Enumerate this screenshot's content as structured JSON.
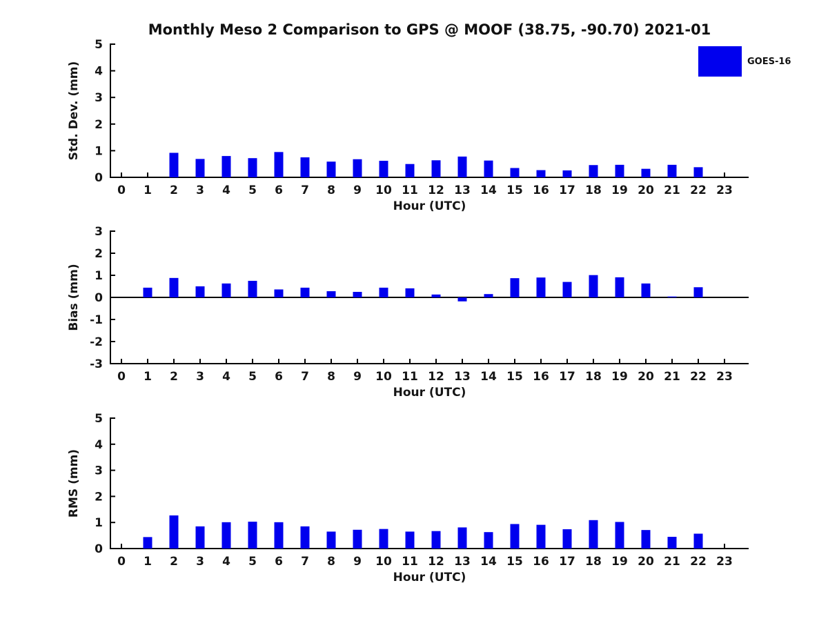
{
  "title": "Monthly Meso 2 Comparison to GPS @ MOOF (38.75, -90.70) 2021-01",
  "legend": {
    "label": "GOES-16",
    "color": "#0000ee",
    "position": "top-right"
  },
  "colors": {
    "bar": "#0000ee",
    "axis": "#000000",
    "text": "#151515",
    "background": "#ffffff"
  },
  "chart_data": [
    {
      "type": "bar",
      "name": "std-dev",
      "series_name": "GOES-16",
      "xlabel": "Hour (UTC)",
      "ylabel": "Std. Dev. (mm)",
      "ylim": [
        0,
        5
      ],
      "yticks": [
        0,
        1,
        2,
        3,
        4,
        5
      ],
      "grid": false,
      "categories": [
        "0",
        "1",
        "2",
        "3",
        "4",
        "5",
        "6",
        "7",
        "8",
        "9",
        "10",
        "11",
        "12",
        "13",
        "14",
        "15",
        "16",
        "17",
        "18",
        "19",
        "20",
        "21",
        "22",
        "23"
      ],
      "values": [
        0,
        0,
        0.92,
        0.69,
        0.8,
        0.72,
        0.95,
        0.75,
        0.59,
        0.68,
        0.62,
        0.5,
        0.64,
        0.78,
        0.63,
        0.35,
        0.27,
        0.26,
        0.46,
        0.47,
        0.32,
        0.47,
        0.38,
        0
      ]
    },
    {
      "type": "bar",
      "name": "bias",
      "series_name": "GOES-16",
      "xlabel": "Hour (UTC)",
      "ylabel": "Bias (mm)",
      "ylim": [
        -3,
        3
      ],
      "yticks": [
        -3,
        -2,
        -1,
        0,
        1,
        2,
        3
      ],
      "grid": false,
      "categories": [
        "0",
        "1",
        "2",
        "3",
        "4",
        "5",
        "6",
        "7",
        "8",
        "9",
        "10",
        "11",
        "12",
        "13",
        "14",
        "15",
        "16",
        "17",
        "18",
        "19",
        "20",
        "21",
        "22",
        "23"
      ],
      "values": [
        0,
        0.44,
        0.88,
        0.5,
        0.63,
        0.75,
        0.36,
        0.44,
        0.28,
        0.25,
        0.44,
        0.41,
        0.13,
        -0.18,
        0.15,
        0.87,
        0.9,
        0.7,
        1.01,
        0.91,
        0.63,
        0.04,
        0.46,
        0
      ]
    },
    {
      "type": "bar",
      "name": "rms",
      "series_name": "GOES-16",
      "xlabel": "Hour (UTC)",
      "ylabel": "RMS (mm)",
      "ylim": [
        0,
        5
      ],
      "yticks": [
        0,
        1,
        2,
        3,
        4,
        5
      ],
      "grid": false,
      "categories": [
        "0",
        "1",
        "2",
        "3",
        "4",
        "5",
        "6",
        "7",
        "8",
        "9",
        "10",
        "11",
        "12",
        "13",
        "14",
        "15",
        "16",
        "17",
        "18",
        "19",
        "20",
        "21",
        "22",
        "23"
      ],
      "values": [
        0,
        0.44,
        1.27,
        0.85,
        1.01,
        1.03,
        1.01,
        0.85,
        0.65,
        0.72,
        0.75,
        0.65,
        0.67,
        0.81,
        0.63,
        0.94,
        0.91,
        0.74,
        1.09,
        1.02,
        0.71,
        0.45,
        0.57,
        0
      ]
    }
  ]
}
